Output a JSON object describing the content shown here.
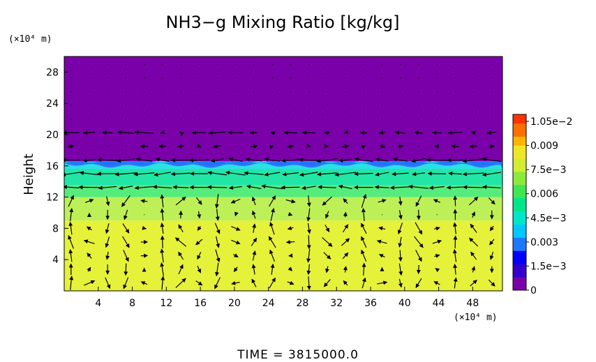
{
  "chart_data": {
    "type": "heatmap",
    "title": "NH3−g Mixing Ratio [kg/kg]",
    "ylabel": "Height",
    "x_unit": "(×10⁴ m)",
    "y_unit": "(×10⁴ m)",
    "footer": "TIME = 3815000.0",
    "xlim": [
      0,
      51.5
    ],
    "ylim": [
      0,
      30
    ],
    "x_ticks": [
      "4",
      "8",
      "12",
      "16",
      "20",
      "24",
      "28",
      "32",
      "36",
      "40",
      "44",
      "48"
    ],
    "y_ticks": [
      "4",
      "8",
      "12",
      "16",
      "20",
      "24",
      "28"
    ],
    "colorbar": {
      "range": [
        0,
        0.0105
      ],
      "labels": [
        "0",
        "1.5e−3",
        "0.003",
        "4.5e−3",
        "0.006",
        "7.5e−3",
        "0.009",
        "1.05e−2"
      ]
    },
    "layers": [
      {
        "from_height": 0,
        "to_height": 9,
        "value": 0.0079,
        "color": "#e6f13a"
      },
      {
        "from_height": 9,
        "to_height": 12,
        "value": 0.0073,
        "color": "#bdf056"
      },
      {
        "from_height": 12,
        "to_height": 13.5,
        "value": 0.0062,
        "color": "#55ec7c"
      },
      {
        "from_height": 13.5,
        "to_height": 15.8,
        "value": 0.0052,
        "color": "#22e6a6"
      },
      {
        "from_height": 15.8,
        "to_height": 16.6,
        "value": 0.002,
        "color": "#1e7cff"
      },
      {
        "from_height": 16.6,
        "to_height": 30,
        "value": 0,
        "color": "#7a00aa"
      }
    ]
  }
}
